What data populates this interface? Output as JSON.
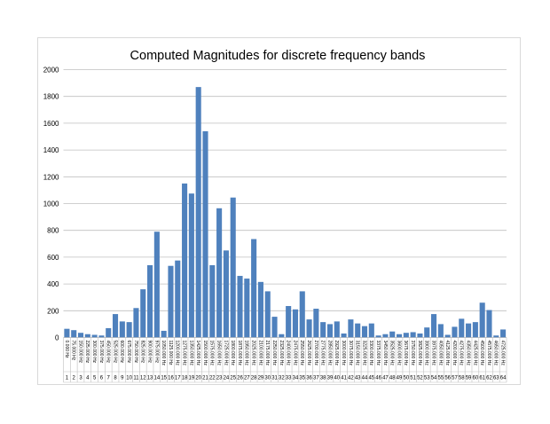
{
  "chart_data": {
    "type": "bar",
    "title": "Computed Magnitudes for discrete frequency bands",
    "xlabel": "",
    "ylabel": "",
    "ylim": [
      0,
      2000
    ],
    "yticks": [
      0,
      200,
      400,
      600,
      800,
      1000,
      1200,
      1400,
      1600,
      1800,
      2000
    ],
    "grid": true,
    "legend": "none",
    "bar_color": "#4f81bd",
    "categories": [
      "0.000 Hz",
      "75.000 Hz",
      "150.000 Hz",
      "225.000 Hz",
      "300.000 Hz",
      "375.000 Hz",
      "450.000 Hz",
      "525.000 Hz",
      "600.000 Hz",
      "675.000 Hz",
      "750.000 Hz",
      "825.000 Hz",
      "900.000 Hz",
      "975.000 Hz",
      "1050.000 Hz",
      "1125.000 Hz",
      "1200.000 Hz",
      "1275.000 Hz",
      "1350.000 Hz",
      "1425.000 Hz",
      "1500.000 Hz",
      "1575.000 Hz",
      "1650.000 Hz",
      "1725.000 Hz",
      "1800.000 Hz",
      "1875.000 Hz",
      "1950.000 Hz",
      "2025.000 Hz",
      "2100.000 Hz",
      "2175.000 Hz",
      "2250.000 Hz",
      "2325.000 Hz",
      "2400.000 Hz",
      "2475.000 Hz",
      "2550.000 Hz",
      "2625.000 Hz",
      "2700.000 Hz",
      "2775.000 Hz",
      "2850.000 Hz",
      "2925.000 Hz",
      "3000.000 Hz",
      "3075.000 Hz",
      "3150.000 Hz",
      "3225.000 Hz",
      "3300.000 Hz",
      "3375.000 Hz",
      "3450.000 Hz",
      "3525.000 Hz",
      "3600.000 Hz",
      "3675.000 Hz",
      "3750.000 Hz",
      "3825.000 Hz",
      "3900.000 Hz",
      "3975.000 Hz",
      "4050.000 Hz",
      "4125.000 Hz",
      "4200.000 Hz",
      "4275.000 Hz",
      "4350.000 Hz",
      "4425.000 Hz",
      "4500.000 Hz",
      "4575.000 Hz",
      "4650.000 Hz",
      "4725.000 Hz"
    ],
    "indices": [
      "1",
      "2",
      "3",
      "4",
      "5",
      "6",
      "7",
      "8",
      "9",
      "10",
      "11",
      "12",
      "13",
      "14",
      "15",
      "16",
      "17",
      "18",
      "19",
      "20",
      "21",
      "22",
      "23",
      "24",
      "25",
      "26",
      "27",
      "28",
      "29",
      "30",
      "31",
      "32",
      "33",
      "34",
      "35",
      "36",
      "37",
      "38",
      "39",
      "40",
      "41",
      "42",
      "43",
      "44",
      "45",
      "46",
      "47",
      "48",
      "49",
      "50",
      "51",
      "52",
      "53",
      "54",
      "55",
      "56",
      "57",
      "58",
      "59",
      "60",
      "61",
      "62",
      "63",
      "64"
    ],
    "values": [
      65,
      55,
      35,
      25,
      20,
      15,
      70,
      175,
      120,
      115,
      220,
      360,
      540,
      790,
      50,
      535,
      575,
      1150,
      1075,
      1870,
      1540,
      540,
      965,
      650,
      1045,
      460,
      440,
      735,
      415,
      345,
      155,
      25,
      235,
      210,
      345,
      135,
      215,
      115,
      100,
      120,
      30,
      135,
      105,
      85,
      105,
      15,
      25,
      45,
      25,
      35,
      40,
      30,
      75,
      175,
      100,
      20,
      80,
      140,
      105,
      115,
      260,
      205,
      15,
      60
    ]
  }
}
